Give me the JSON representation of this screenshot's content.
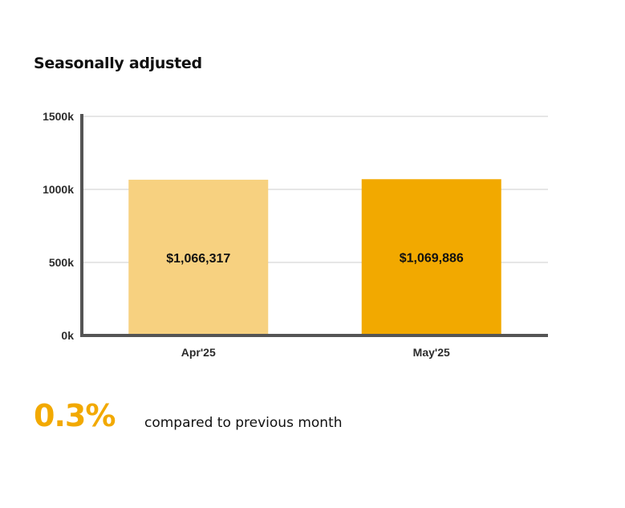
{
  "chart_data": {
    "type": "bar",
    "title": "Seasonally adjusted",
    "categories": [
      "Apr'25",
      "May'25"
    ],
    "values": [
      1066317,
      1069886
    ],
    "value_labels": [
      "$1,066,317",
      "$1,069,886"
    ],
    "bar_colors": [
      "#f7d180",
      "#f2a900"
    ],
    "xlabel": "",
    "ylabel": "",
    "ylim": [
      0,
      1500000
    ],
    "yticks": [
      0,
      500000,
      1000000,
      1500000
    ],
    "ytick_labels": [
      "0k",
      "500k",
      "1000k",
      "1500k"
    ],
    "grid": true,
    "legend": "none"
  },
  "summary": {
    "change_value": "0.3%",
    "change_caption": "compared to previous month"
  },
  "colors": {
    "accent": "#f2a900",
    "axis": "#555555",
    "grid": "#dddddd"
  }
}
